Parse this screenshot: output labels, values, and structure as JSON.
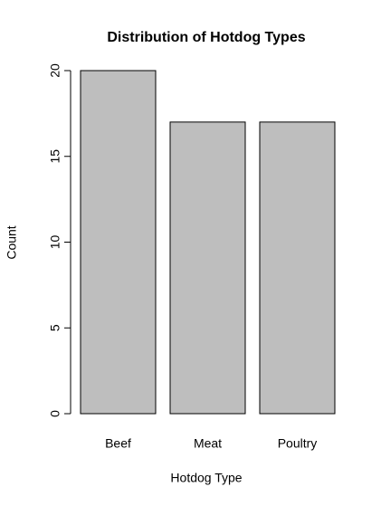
{
  "chart_data": {
    "type": "bar",
    "title": "Distribution of Hotdog Types",
    "x_label": "Hotdog Type",
    "y_label": "Count",
    "categories": [
      "Beef",
      "Meat",
      "Poultry"
    ],
    "values": [
      20,
      17,
      17
    ],
    "color": "#bebebe",
    "ylim": [
      0,
      20
    ],
    "yticks": [
      0,
      5,
      10,
      15,
      20
    ]
  }
}
